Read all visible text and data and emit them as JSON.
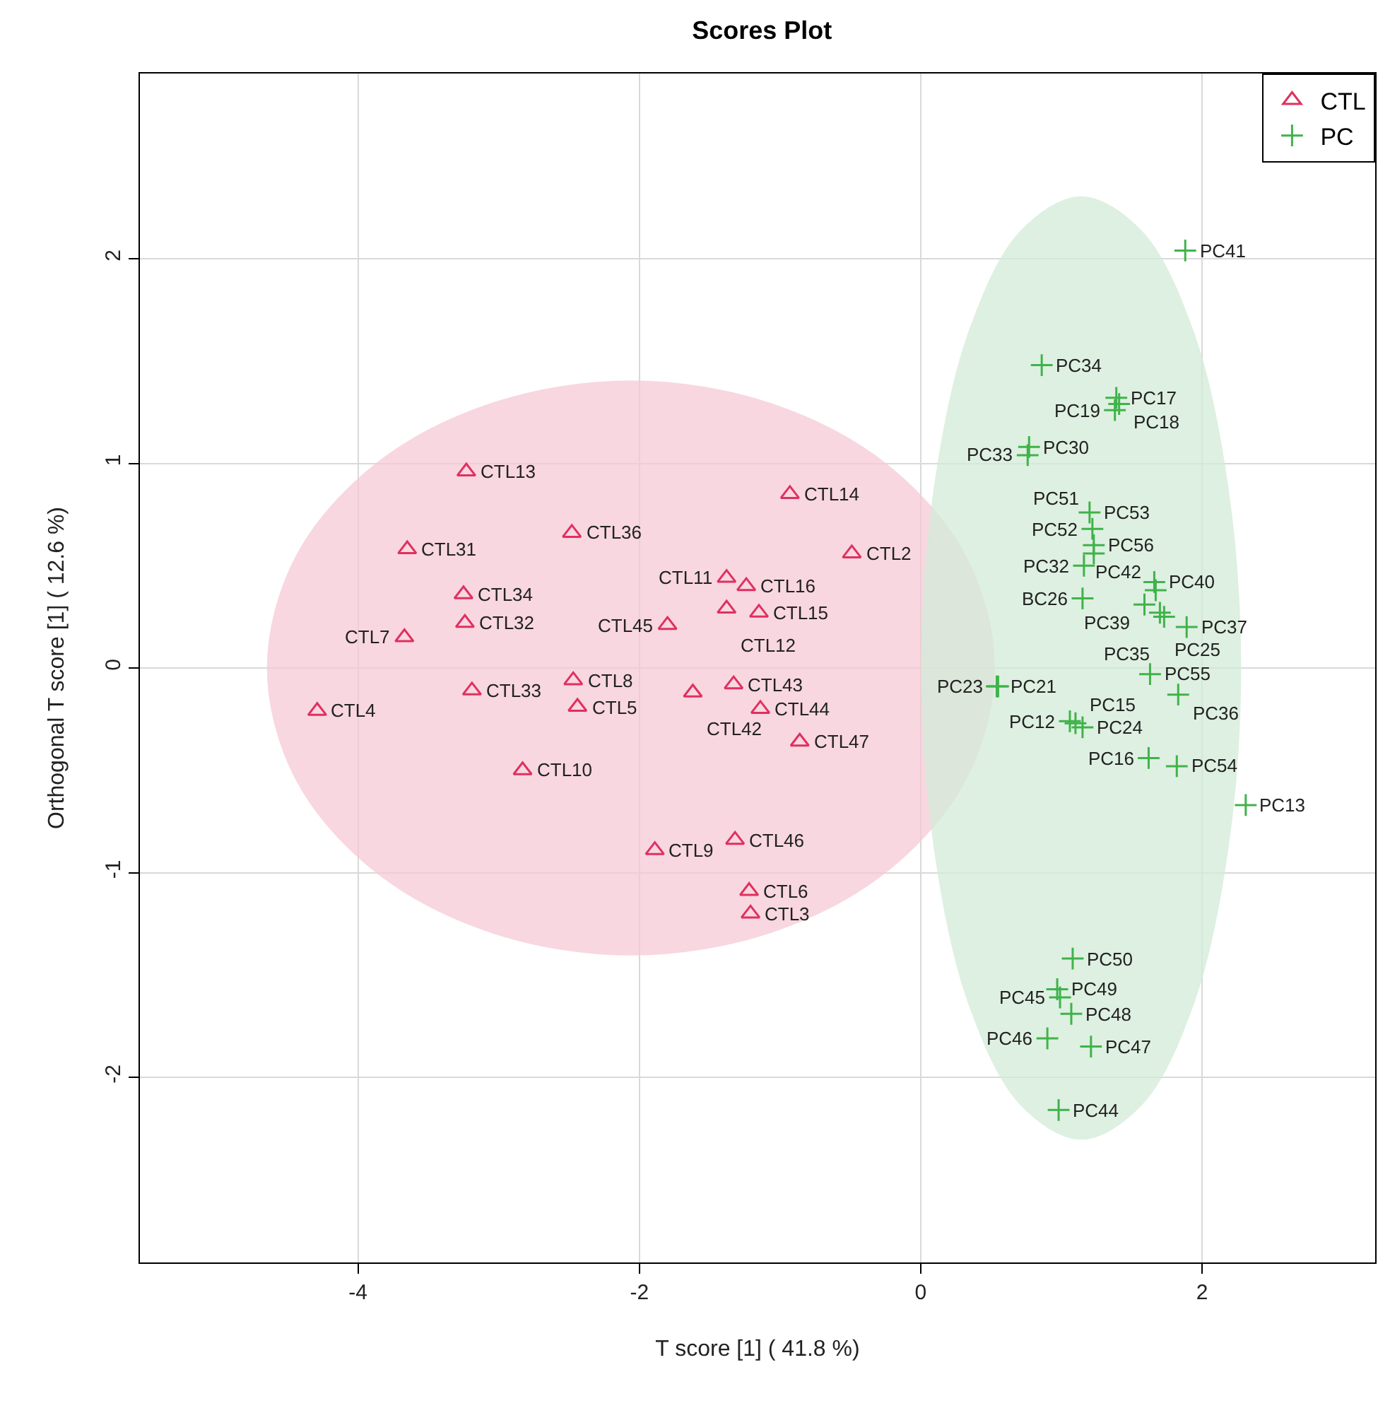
{
  "chart_data": {
    "type": "scatter",
    "title": "Scores Plot",
    "xlabel": "T score [1] ( 41.8 %)",
    "ylabel": "Orthogonal T score [1] ( 12.6 %)",
    "xlim": [
      -5.55,
      3.23
    ],
    "ylim": [
      -2.905,
      2.905
    ],
    "xticks": [
      -4,
      -2,
      0,
      2
    ],
    "yticks": [
      -2,
      -1,
      0,
      1,
      2
    ],
    "grid": true,
    "legend": "top right",
    "series": [
      {
        "type": "area",
        "color": "#f6cad6",
        "x": [
          0.52,
          0.32,
          -0.24,
          -1.07,
          -2.06,
          -3.05,
          -3.88,
          -4.44,
          -4.64,
          -4.44,
          -3.88,
          -3.05,
          -2.06,
          -1.07,
          -0.24,
          0.32,
          0.52
        ],
        "values": [
          0,
          0.54,
          0.99,
          1.29,
          1.4,
          1.29,
          0.99,
          0.54,
          0,
          -0.54,
          -0.99,
          -1.29,
          -1.4,
          -1.29,
          -0.99,
          -0.54,
          0
        ]
      },
      {
        "type": "area",
        "color": "#d3ecd8",
        "x": [
          2.27,
          2.18,
          1.94,
          1.57,
          1.14,
          0.71,
          0.34,
          0.1,
          0.01,
          0.1,
          0.34,
          0.71,
          1.14,
          1.57,
          1.94,
          2.18,
          2.27
        ],
        "values": [
          0,
          0.88,
          1.63,
          2.13,
          2.3,
          2.13,
          1.63,
          0.88,
          0,
          -0.88,
          -1.63,
          -2.13,
          -2.3,
          -2.13,
          -1.63,
          -0.88,
          0
        ]
      },
      {
        "name": "CTL",
        "color": "#e0305f",
        "marker": "triangle",
        "x": [
          -3.23,
          -3.65,
          -2.48,
          -3.25,
          -3.24,
          -3.67,
          -2.47,
          -2.44,
          -3.19,
          -4.29,
          -2.83,
          -0.93,
          -0.49,
          -1.38,
          -1.24,
          -1.38,
          -1.15,
          -1.8,
          -1.33,
          -1.62,
          -1.14,
          -0.86,
          -1.32,
          -1.89,
          -1.22,
          -1.21
        ],
        "values": [
          0.96,
          0.58,
          0.66,
          0.36,
          0.22,
          0.15,
          -0.06,
          -0.19,
          -0.11,
          -0.21,
          -0.5,
          0.85,
          0.56,
          0.44,
          0.4,
          0.29,
          0.27,
          0.21,
          -0.08,
          -0.12,
          -0.2,
          -0.36,
          -0.84,
          -0.89,
          -1.09,
          -1.2
        ]
      },
      {
        "name": "PC",
        "color": "#3fb34a",
        "marker": "cross",
        "x": [
          1.88,
          0.86,
          1.39,
          1.41,
          1.38,
          0.77,
          0.76,
          1.2,
          1.22,
          1.23,
          1.23,
          1.16,
          1.15,
          1.66,
          1.67,
          1.59,
          1.7,
          1.73,
          1.89,
          1.63,
          1.83,
          0.54,
          0.55,
          1.06,
          1.1,
          1.15,
          1.62,
          1.82,
          2.31,
          1.08,
          0.97,
          0.99,
          1.07,
          0.9,
          1.21,
          0.98
        ],
        "values": [
          2.04,
          1.48,
          1.32,
          1.29,
          1.26,
          1.08,
          1.04,
          0.76,
          0.68,
          0.6,
          0.56,
          0.5,
          0.34,
          0.42,
          0.38,
          0.31,
          0.27,
          0.25,
          0.2,
          -0.03,
          -0.13,
          -0.09,
          -0.09,
          -0.26,
          -0.27,
          -0.29,
          -0.44,
          -0.48,
          -0.67,
          -1.42,
          -1.57,
          -1.61,
          -1.69,
          -1.81,
          -1.85,
          -2.16
        ]
      }
    ],
    "annotations": [
      {
        "text": "CTL13",
        "x": -3.23,
        "y": 0.96
      },
      {
        "text": "CTL31",
        "x": -3.65,
        "y": 0.58
      },
      {
        "text": "CTL36",
        "x": -2.48,
        "y": 0.66
      },
      {
        "text": "CTL34",
        "x": -3.25,
        "y": 0.36
      },
      {
        "text": "CTL32",
        "x": -3.24,
        "y": 0.22
      },
      {
        "text": "CTL7",
        "x": -3.67,
        "y": 0.15
      },
      {
        "text": "CTL8",
        "x": -2.47,
        "y": -0.06
      },
      {
        "text": "CTL5",
        "x": -2.44,
        "y": -0.19
      },
      {
        "text": "CTL33",
        "x": -3.19,
        "y": -0.11
      },
      {
        "text": "CTL4",
        "x": -4.29,
        "y": -0.21
      },
      {
        "text": "CTL10",
        "x": -2.83,
        "y": -0.5
      },
      {
        "text": "CTL14",
        "x": -0.93,
        "y": 0.85
      },
      {
        "text": "CTL2",
        "x": -0.49,
        "y": 0.56
      },
      {
        "text": "CTL11",
        "x": -1.38,
        "y": 0.44
      },
      {
        "text": "CTL16",
        "x": -1.24,
        "y": 0.4
      },
      {
        "text": "CTL12",
        "x": -1.38,
        "y": 0.29
      },
      {
        "text": "CTL15",
        "x": -1.15,
        "y": 0.27
      },
      {
        "text": "CTL45",
        "x": -1.8,
        "y": 0.21
      },
      {
        "text": "CTL43",
        "x": -1.33,
        "y": -0.08
      },
      {
        "text": "CTL42",
        "x": -1.62,
        "y": -0.12
      },
      {
        "text": "CTL44",
        "x": -1.14,
        "y": -0.2
      },
      {
        "text": "CTL47",
        "x": -0.86,
        "y": -0.36
      },
      {
        "text": "CTL46",
        "x": -1.32,
        "y": -0.84
      },
      {
        "text": "CTL9",
        "x": -1.89,
        "y": -0.89
      },
      {
        "text": "CTL6",
        "x": -1.22,
        "y": -1.09
      },
      {
        "text": "CTL3",
        "x": -1.21,
        "y": -1.2
      },
      {
        "text": "PC41",
        "x": 1.88,
        "y": 2.04
      },
      {
        "text": "PC34",
        "x": 0.86,
        "y": 1.48
      },
      {
        "text": "PC17",
        "x": 1.39,
        "y": 1.32
      },
      {
        "text": "PC18",
        "x": 1.41,
        "y": 1.29
      },
      {
        "text": "PC19",
        "x": 1.38,
        "y": 1.26
      },
      {
        "text": "PC30",
        "x": 0.77,
        "y": 1.08
      },
      {
        "text": "PC33",
        "x": 0.76,
        "y": 1.04
      },
      {
        "text": "PC53",
        "x": 1.2,
        "y": 0.76
      },
      {
        "text": "PC52",
        "x": 1.22,
        "y": 0.68
      },
      {
        "text": "PC56",
        "x": 1.23,
        "y": 0.6
      },
      {
        "text": "PC51",
        "x": 1.23,
        "y": 0.56
      },
      {
        "text": "PC32",
        "x": 1.16,
        "y": 0.5
      },
      {
        "text": "BC26",
        "x": 1.15,
        "y": 0.34
      },
      {
        "text": "PC40",
        "x": 1.66,
        "y": 0.42
      },
      {
        "text": "PC42",
        "x": 1.67,
        "y": 0.38
      },
      {
        "text": "PC39",
        "x": 1.59,
        "y": 0.31
      },
      {
        "text": "PC25",
        "x": 1.7,
        "y": 0.27
      },
      {
        "text": "PC35",
        "x": 1.73,
        "y": 0.25
      },
      {
        "text": "PC37",
        "x": 1.89,
        "y": 0.2
      },
      {
        "text": "PC55",
        "x": 1.63,
        "y": -0.03
      },
      {
        "text": "PC36",
        "x": 1.83,
        "y": -0.13
      },
      {
        "text": "PC21",
        "x": 0.54,
        "y": -0.09
      },
      {
        "text": "PC23",
        "x": 0.55,
        "y": -0.09
      },
      {
        "text": "PC12",
        "x": 1.06,
        "y": -0.26
      },
      {
        "text": "PC15",
        "x": 1.1,
        "y": -0.27
      },
      {
        "text": "PC24",
        "x": 1.15,
        "y": -0.29
      },
      {
        "text": "PC16",
        "x": 1.62,
        "y": -0.44
      },
      {
        "text": "PC54",
        "x": 1.82,
        "y": -0.48
      },
      {
        "text": "PC13",
        "x": 2.31,
        "y": -0.67
      },
      {
        "text": "PC50",
        "x": 1.08,
        "y": -1.42
      },
      {
        "text": "PC49",
        "x": 0.97,
        "y": -1.57
      },
      {
        "text": "PC45",
        "x": 0.99,
        "y": -1.61
      },
      {
        "text": "PC48",
        "x": 1.07,
        "y": -1.69
      },
      {
        "text": "PC46",
        "x": 0.9,
        "y": -1.81
      },
      {
        "text": "PC47",
        "x": 1.21,
        "y": -1.85
      },
      {
        "text": "PC44",
        "x": 0.98,
        "y": -2.16
      }
    ]
  }
}
